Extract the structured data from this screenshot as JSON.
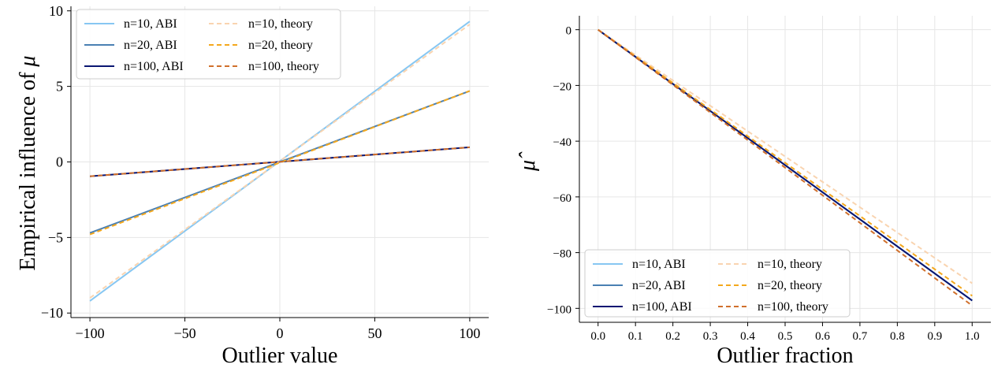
{
  "chart_data": [
    {
      "type": "line",
      "title": "",
      "xlabel": "Outlier value",
      "ylabel_prefix": "Empirical influence of ",
      "ylabel_symbol": "μ",
      "xlim": [
        -110,
        110
      ],
      "ylim": [
        -10.3,
        10.3
      ],
      "xticks": [
        -100,
        -50,
        0,
        50,
        100
      ],
      "xtick_labels": [
        "−100",
        "−50",
        "0",
        "50",
        "100"
      ],
      "yticks": [
        -10,
        -5,
        0,
        5,
        10
      ],
      "ytick_labels": [
        "−10",
        "−5",
        "0",
        "5",
        "10"
      ],
      "grid": true,
      "legend_position": "upper-left",
      "legend_columns": 2,
      "series": [
        {
          "name": "n=10, ABI",
          "color": "#87c7f2",
          "style": "solid",
          "x": [
            -100,
            100
          ],
          "y": [
            -9.2,
            9.3
          ]
        },
        {
          "name": "n=20, ABI",
          "color": "#4a80b3",
          "style": "solid",
          "x": [
            -100,
            100
          ],
          "y": [
            -4.7,
            4.7
          ]
        },
        {
          "name": "n=100, ABI",
          "color": "#0a1672",
          "style": "solid",
          "x": [
            -100,
            100
          ],
          "y": [
            -0.95,
            0.97
          ]
        },
        {
          "name": "n=10, theory",
          "color": "#f9d4b0",
          "style": "dashed",
          "x": [
            -100,
            100
          ],
          "y": [
            -9.0,
            9.1
          ]
        },
        {
          "name": "n=20, theory",
          "color": "#f4a81d",
          "style": "dashed",
          "x": [
            -100,
            100
          ],
          "y": [
            -4.8,
            4.7
          ]
        },
        {
          "name": "n=100, theory",
          "color": "#d0702c",
          "style": "dashed",
          "x": [
            -100,
            100
          ],
          "y": [
            -0.95,
            0.97
          ]
        }
      ]
    },
    {
      "type": "line",
      "title": "",
      "xlabel": "Outlier fraction",
      "ylabel": "μ̂",
      "xlim": [
        -0.05,
        1.05
      ],
      "ylim": [
        -105,
        5
      ],
      "xticks": [
        0.0,
        0.1,
        0.2,
        0.3,
        0.4,
        0.5,
        0.6,
        0.7,
        0.8,
        0.9,
        1.0
      ],
      "xtick_labels": [
        "0.0",
        "0.1",
        "0.2",
        "0.3",
        "0.4",
        "0.5",
        "0.6",
        "0.7",
        "0.8",
        "0.9",
        "1.0"
      ],
      "yticks": [
        0,
        -20,
        -40,
        -60,
        -80,
        -100
      ],
      "ytick_labels": [
        "0",
        "−20",
        "−40",
        "−60",
        "−80",
        "−100"
      ],
      "grid": true,
      "legend_position": "lower-left",
      "legend_columns": 2,
      "series": [
        {
          "name": "n=10, ABI",
          "color": "#87c7f2",
          "style": "solid",
          "x": [
            0,
            1
          ],
          "y": [
            0,
            -97.2
          ]
        },
        {
          "name": "n=20, ABI",
          "color": "#4a80b3",
          "style": "solid",
          "x": [
            0,
            1
          ],
          "y": [
            0,
            -97.2
          ]
        },
        {
          "name": "n=100, ABI",
          "color": "#0a1672",
          "style": "solid",
          "x": [
            0,
            1
          ],
          "y": [
            0,
            -97.2
          ]
        },
        {
          "name": "n=10, theory",
          "color": "#f9d4b0",
          "style": "dashed",
          "x": [
            0,
            1
          ],
          "y": [
            0,
            -91
          ]
        },
        {
          "name": "n=20, theory",
          "color": "#f4a81d",
          "style": "dashed",
          "x": [
            0,
            1
          ],
          "y": [
            0,
            -95.5
          ]
        },
        {
          "name": "n=100, theory",
          "color": "#d0702c",
          "style": "dashed",
          "x": [
            0,
            1
          ],
          "y": [
            0,
            -99
          ]
        }
      ]
    }
  ]
}
